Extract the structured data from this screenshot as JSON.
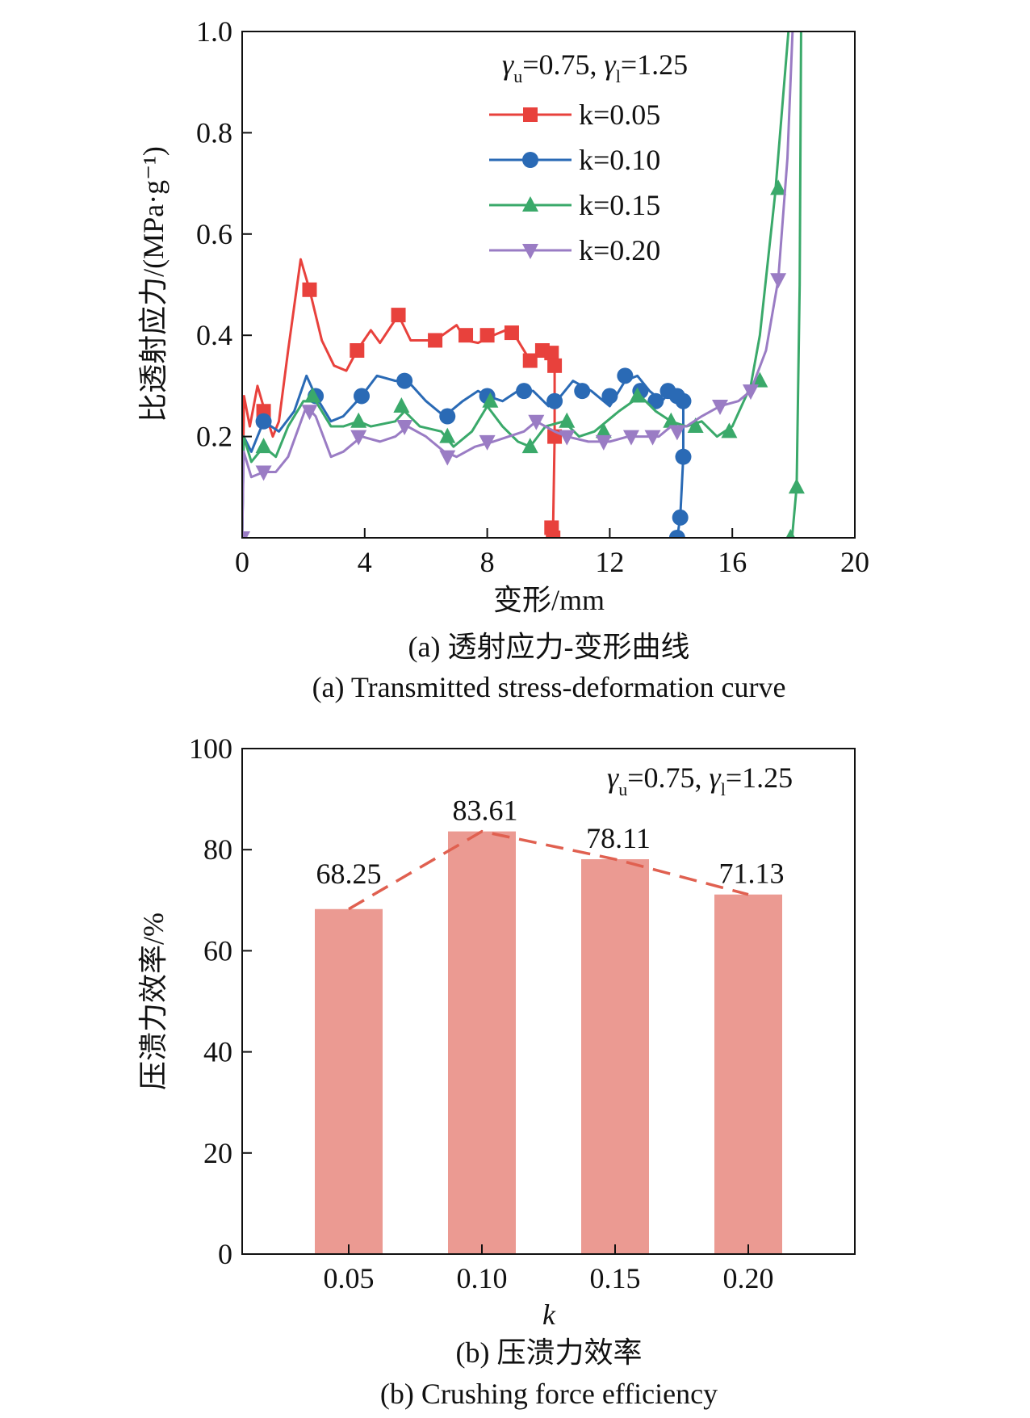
{
  "chart_data": [
    {
      "type": "line",
      "xlabel": "变形/mm",
      "ylabel": "比透射应力/(MPa·g⁻¹)",
      "caption_cn": "(a) 透射应力-变形曲线",
      "caption_en": "(a) Transmitted stress-deformation curve",
      "xlim": [
        0,
        20
      ],
      "ylim": [
        0,
        1.0
      ],
      "xticks": [
        "0",
        "4",
        "8",
        "12",
        "16",
        "20"
      ],
      "xtick_values": [
        0,
        4,
        8,
        12,
        16,
        20
      ],
      "yticks": [
        "0.2",
        "0.4",
        "0.6",
        "0.8",
        "1.0"
      ],
      "ytick_values": [
        0.2,
        0.4,
        0.6,
        0.8,
        1.0
      ],
      "annotation": {
        "g1": "γ",
        "s1": "u",
        "v1": "=0.75, ",
        "g2": "γ",
        "s2": "l",
        "v2": "=1.25"
      },
      "legend_position": "top-right",
      "series": [
        {
          "name": "k=0.05",
          "color": "#e8413c",
          "marker": "square",
          "points": [
            [
              0,
              0
            ],
            [
              0.06,
              0.28
            ],
            [
              0.25,
              0.22
            ],
            [
              0.5,
              0.3
            ],
            [
              0.74,
              0.25
            ],
            [
              1.0,
              0.2
            ],
            [
              1.2,
              0.23
            ],
            [
              1.5,
              0.37
            ],
            [
              1.91,
              0.55
            ],
            [
              2.2,
              0.49
            ],
            [
              2.6,
              0.39
            ],
            [
              3.0,
              0.34
            ],
            [
              3.4,
              0.33
            ],
            [
              3.75,
              0.37
            ],
            [
              4.2,
              0.41
            ],
            [
              4.5,
              0.385
            ],
            [
              5.1,
              0.44
            ],
            [
              5.5,
              0.39
            ],
            [
              6.3,
              0.39
            ],
            [
              7.0,
              0.42
            ],
            [
              7.3,
              0.39
            ],
            [
              7.7,
              0.385
            ],
            [
              8.2,
              0.4
            ],
            [
              8.6,
              0.41
            ],
            [
              8.9,
              0.4
            ],
            [
              9.4,
              0.35
            ],
            [
              9.85,
              0.37
            ],
            [
              10.1,
              0.365
            ],
            [
              10.2,
              0.34
            ],
            [
              10.2,
              0.2
            ],
            [
              10.15,
              0.02
            ],
            [
              10.15,
              0
            ]
          ],
          "markers": [
            [
              0.7,
              0.25
            ],
            [
              2.2,
              0.49
            ],
            [
              3.75,
              0.37
            ],
            [
              5.1,
              0.44
            ],
            [
              6.3,
              0.39
            ],
            [
              7.3,
              0.4
            ],
            [
              8.0,
              0.4
            ],
            [
              8.8,
              0.405
            ],
            [
              9.4,
              0.35
            ],
            [
              9.8,
              0.37
            ],
            [
              10.1,
              0.365
            ],
            [
              10.2,
              0.34
            ],
            [
              10.2,
              0.2
            ],
            [
              10.1,
              0.02
            ],
            [
              10.15,
              0.0
            ]
          ]
        },
        {
          "name": "k=0.10",
          "color": "#2a6ab5",
          "marker": "circle",
          "points": [
            [
              0,
              0
            ],
            [
              0.05,
              0.2
            ],
            [
              0.3,
              0.17
            ],
            [
              0.7,
              0.23
            ],
            [
              1.2,
              0.21
            ],
            [
              1.7,
              0.25
            ],
            [
              2.1,
              0.32
            ],
            [
              2.4,
              0.28
            ],
            [
              2.9,
              0.23
            ],
            [
              3.3,
              0.24
            ],
            [
              3.9,
              0.28
            ],
            [
              4.4,
              0.32
            ],
            [
              5.0,
              0.31
            ],
            [
              5.4,
              0.31
            ],
            [
              6.0,
              0.27
            ],
            [
              6.6,
              0.24
            ],
            [
              7.2,
              0.27
            ],
            [
              7.7,
              0.29
            ],
            [
              8.0,
              0.28
            ],
            [
              8.5,
              0.27
            ],
            [
              9.0,
              0.29
            ],
            [
              9.5,
              0.29
            ],
            [
              10.0,
              0.26
            ],
            [
              10.4,
              0.28
            ],
            [
              10.8,
              0.31
            ],
            [
              11.4,
              0.29
            ],
            [
              12.0,
              0.26
            ],
            [
              12.5,
              0.31
            ],
            [
              12.9,
              0.32
            ],
            [
              13.3,
              0.29
            ],
            [
              13.7,
              0.27
            ],
            [
              14.0,
              0.29
            ],
            [
              14.3,
              0.28
            ],
            [
              14.4,
              0.27
            ],
            [
              14.4,
              0.16
            ],
            [
              14.3,
              0.04
            ],
            [
              14.2,
              0
            ]
          ],
          "markers": [
            [
              0.7,
              0.23
            ],
            [
              2.4,
              0.28
            ],
            [
              3.9,
              0.28
            ],
            [
              5.3,
              0.31
            ],
            [
              6.7,
              0.24
            ],
            [
              8.0,
              0.28
            ],
            [
              9.2,
              0.29
            ],
            [
              10.2,
              0.27
            ],
            [
              11.1,
              0.29
            ],
            [
              12.0,
              0.28
            ],
            [
              12.5,
              0.32
            ],
            [
              13.0,
              0.29
            ],
            [
              13.5,
              0.27
            ],
            [
              13.9,
              0.29
            ],
            [
              14.2,
              0.28
            ],
            [
              14.4,
              0.27
            ],
            [
              14.4,
              0.16
            ],
            [
              14.3,
              0.04
            ],
            [
              14.2,
              0
            ]
          ]
        },
        {
          "name": "k=0.15",
          "color": "#3aa96a",
          "marker": "triangle-up",
          "points": [
            [
              0,
              0
            ],
            [
              0.05,
              0.2
            ],
            [
              0.3,
              0.15
            ],
            [
              0.7,
              0.18
            ],
            [
              1.1,
              0.16
            ],
            [
              1.5,
              0.22
            ],
            [
              2.0,
              0.27
            ],
            [
              2.4,
              0.27
            ],
            [
              2.9,
              0.22
            ],
            [
              3.3,
              0.22
            ],
            [
              3.8,
              0.23
            ],
            [
              4.2,
              0.22
            ],
            [
              5.0,
              0.23
            ],
            [
              5.3,
              0.25
            ],
            [
              5.8,
              0.22
            ],
            [
              6.5,
              0.21
            ],
            [
              6.9,
              0.18
            ],
            [
              7.5,
              0.21
            ],
            [
              8.0,
              0.26
            ],
            [
              8.5,
              0.22
            ],
            [
              9.0,
              0.19
            ],
            [
              9.4,
              0.18
            ],
            [
              9.9,
              0.22
            ],
            [
              10.5,
              0.23
            ],
            [
              11.0,
              0.2
            ],
            [
              11.5,
              0.21
            ],
            [
              12.3,
              0.25
            ],
            [
              13.0,
              0.28
            ],
            [
              13.5,
              0.25
            ],
            [
              14.0,
              0.23
            ],
            [
              14.5,
              0.22
            ],
            [
              15.0,
              0.23
            ],
            [
              15.5,
              0.2
            ],
            [
              16.0,
              0.22
            ],
            [
              16.6,
              0.3
            ],
            [
              16.9,
              0.4
            ],
            [
              17.4,
              0.68
            ],
            [
              17.9,
              1.05
            ],
            [
              18.25,
              1.05
            ],
            [
              18.2,
              0.5
            ],
            [
              18.1,
              0.1
            ],
            [
              17.95,
              0
            ]
          ],
          "markers": [
            [
              0,
              0
            ],
            [
              0.7,
              0.18
            ],
            [
              2.3,
              0.28
            ],
            [
              3.8,
              0.23
            ],
            [
              5.2,
              0.26
            ],
            [
              6.7,
              0.2
            ],
            [
              8.1,
              0.27
            ],
            [
              9.4,
              0.18
            ],
            [
              10.6,
              0.23
            ],
            [
              11.8,
              0.21
            ],
            [
              12.9,
              0.28
            ],
            [
              14.0,
              0.23
            ],
            [
              14.8,
              0.22
            ],
            [
              15.9,
              0.21
            ],
            [
              16.9,
              0.31
            ],
            [
              17.5,
              0.69
            ],
            [
              18.1,
              0.1
            ],
            [
              17.9,
              0
            ]
          ]
        },
        {
          "name": "k=0.20",
          "color": "#9a7cc4",
          "marker": "triangle-down",
          "points": [
            [
              0,
              0
            ],
            [
              0.05,
              0.17
            ],
            [
              0.3,
              0.12
            ],
            [
              0.7,
              0.13
            ],
            [
              1.1,
              0.13
            ],
            [
              1.5,
              0.16
            ],
            [
              2.1,
              0.26
            ],
            [
              2.4,
              0.24
            ],
            [
              2.9,
              0.16
            ],
            [
              3.3,
              0.17
            ],
            [
              3.9,
              0.2
            ],
            [
              4.5,
              0.19
            ],
            [
              5.0,
              0.2
            ],
            [
              5.4,
              0.22
            ],
            [
              6.0,
              0.2
            ],
            [
              6.6,
              0.17
            ],
            [
              7.0,
              0.16
            ],
            [
              7.6,
              0.18
            ],
            [
              8.2,
              0.19
            ],
            [
              8.7,
              0.2
            ],
            [
              9.2,
              0.21
            ],
            [
              9.6,
              0.23
            ],
            [
              10.2,
              0.21
            ],
            [
              10.6,
              0.2
            ],
            [
              11.3,
              0.19
            ],
            [
              12.0,
              0.19
            ],
            [
              12.6,
              0.2
            ],
            [
              13.2,
              0.2
            ],
            [
              13.6,
              0.2
            ],
            [
              14.0,
              0.22
            ],
            [
              14.5,
              0.22
            ],
            [
              15.0,
              0.24
            ],
            [
              15.6,
              0.26
            ],
            [
              16.2,
              0.27
            ],
            [
              16.6,
              0.29
            ],
            [
              17.1,
              0.37
            ],
            [
              17.5,
              0.51
            ],
            [
              17.8,
              0.75
            ],
            [
              18.0,
              1.05
            ]
          ],
          "markers": [
            [
              0,
              0
            ],
            [
              0.7,
              0.13
            ],
            [
              2.2,
              0.25
            ],
            [
              3.8,
              0.2
            ],
            [
              5.3,
              0.22
            ],
            [
              6.7,
              0.16
            ],
            [
              8.0,
              0.19
            ],
            [
              9.6,
              0.23
            ],
            [
              10.6,
              0.2
            ],
            [
              11.8,
              0.19
            ],
            [
              12.7,
              0.2
            ],
            [
              13.4,
              0.2
            ],
            [
              14.2,
              0.21
            ],
            [
              15.6,
              0.26
            ],
            [
              16.6,
              0.29
            ],
            [
              17.5,
              0.51
            ]
          ]
        }
      ]
    },
    {
      "type": "bar",
      "xlabel": "k",
      "ylabel": "压溃力效率/%",
      "caption_cn": "(b) 压溃力效率",
      "caption_en": "(b) Crushing force efficiency",
      "categories": [
        "0.05",
        "0.10",
        "0.15",
        "0.20"
      ],
      "values": [
        68.25,
        83.61,
        78.11,
        71.13
      ],
      "value_labels": [
        "68.25",
        "83.61",
        "78.11",
        "71.13"
      ],
      "ylim": [
        0,
        100
      ],
      "yticks": [
        "0",
        "20",
        "40",
        "60",
        "80",
        "100"
      ],
      "ytick_values": [
        0,
        20,
        40,
        60,
        80,
        100
      ],
      "annotation": {
        "g1": "γ",
        "s1": "u",
        "v1": "=0.75, ",
        "g2": "γ",
        "s2": "l",
        "v2": "=1.25"
      },
      "bar_color": "#eb9a92",
      "trend_color": "#e06050"
    }
  ]
}
